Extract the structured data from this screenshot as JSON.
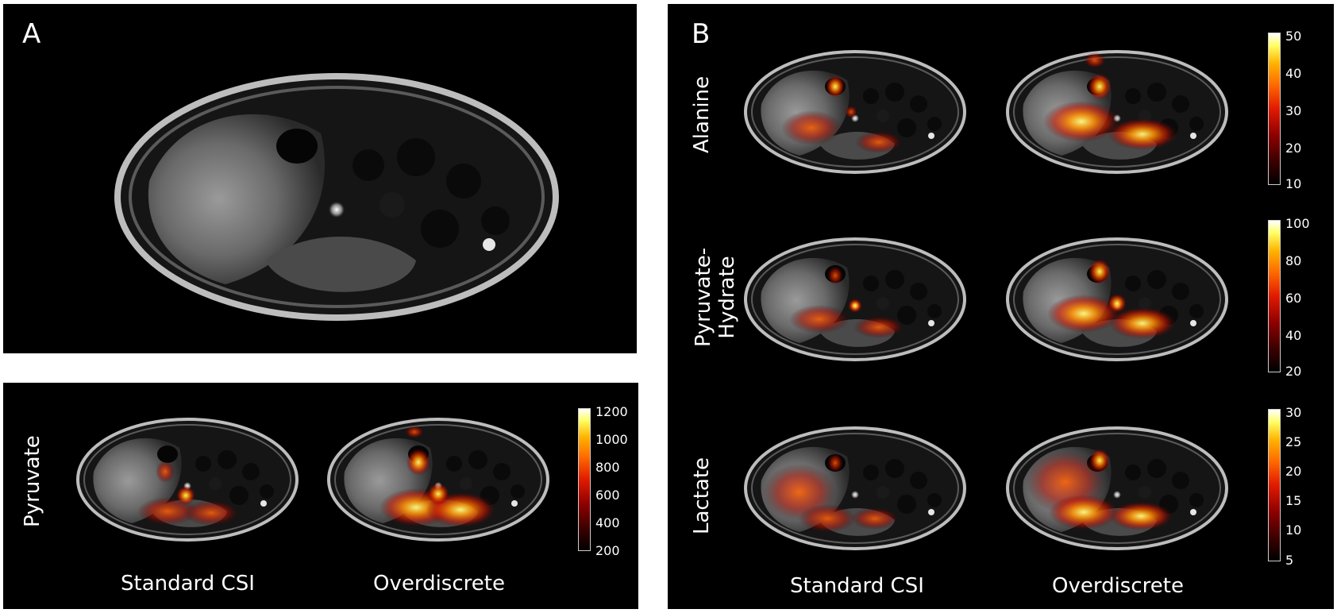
{
  "panel_a": {
    "letter": "A"
  },
  "panel_pyruvate": {
    "row_label": "Pyruvate",
    "col_labels": [
      "Standard CSI",
      "Overdiscrete"
    ],
    "colorbar_ticks": [
      "1200",
      "1000",
      "800",
      "600",
      "400",
      "200"
    ]
  },
  "panel_b": {
    "letter": "B",
    "rows": [
      {
        "label_lines": [
          "Alanine"
        ],
        "colorbar_ticks": [
          "50",
          "40",
          "30",
          "20",
          "10"
        ]
      },
      {
        "label_lines": [
          "Pyruvate-",
          "Hydrate"
        ],
        "colorbar_ticks": [
          "100",
          "80",
          "60",
          "40",
          "20"
        ]
      },
      {
        "label_lines": [
          "Lactate"
        ],
        "colorbar_ticks": [
          "30",
          "25",
          "20",
          "15",
          "10",
          "5"
        ]
      }
    ],
    "col_labels": [
      "Standard CSI",
      "Overdiscrete"
    ]
  },
  "colormap": [
    "#000000",
    "#8b0000",
    "#e01a00",
    "#ff6a00",
    "#ffb300",
    "#ffff66",
    "#ffffff"
  ]
}
